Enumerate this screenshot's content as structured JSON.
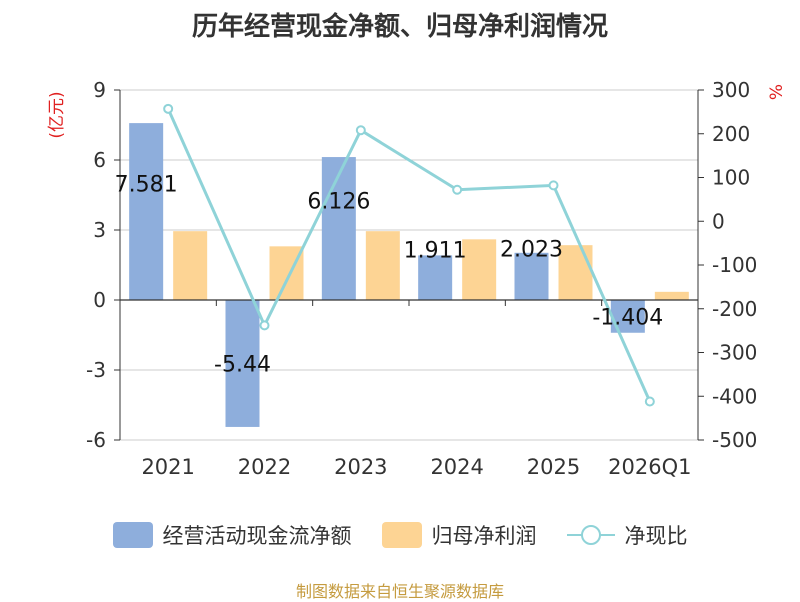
{
  "chart_data": {
    "type": "bar",
    "title": "历年经营现金净额、归母净利润情况",
    "categories": [
      "2021",
      "2022",
      "2023",
      "2024",
      "2025",
      "2026Q1"
    ],
    "series": [
      {
        "name": "经营活动现金流净额",
        "type": "bar",
        "axis": "left",
        "color": "#8eaedc",
        "values": [
          7.581,
          -5.44,
          6.126,
          1.911,
          2.023,
          -1.404
        ],
        "labels": [
          "7.581",
          "-5.44",
          "6.126",
          "1.911",
          "2.023",
          "-1.404"
        ]
      },
      {
        "name": "归母净利润",
        "type": "bar",
        "axis": "left",
        "color": "#fdd494",
        "values": [
          2.95,
          2.3,
          2.95,
          2.6,
          2.35,
          0.35
        ]
      },
      {
        "name": "净现比",
        "type": "line",
        "axis": "right",
        "color": "#8fd3d8",
        "values": [
          257,
          -238,
          208,
          72,
          82,
          -412
        ]
      }
    ],
    "ylabel": "(亿元)",
    "ylabel_right": "%",
    "ylim": [
      -6,
      9
    ],
    "y_ticks": [
      -6,
      -3,
      0,
      3,
      6,
      9
    ],
    "ylim_right": [
      -500,
      300
    ],
    "y_ticks_right": [
      -500,
      -400,
      -300,
      -200,
      -100,
      0,
      100,
      200,
      300
    ],
    "grid": true,
    "legend_position": "bottom"
  },
  "source": "制图数据来自恒生聚源数据库"
}
